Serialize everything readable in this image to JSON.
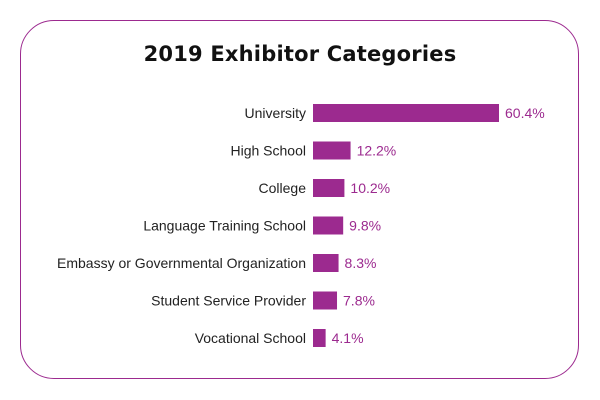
{
  "chart_data": {
    "type": "bar",
    "orientation": "horizontal",
    "title": "2019 Exhibitor Categories",
    "categories": [
      "University",
      "High School",
      "College",
      "Language Training School",
      "Embassy or Governmental Organization",
      "Student Service Provider",
      "Vocational School"
    ],
    "values": [
      60.4,
      12.2,
      10.2,
      9.8,
      8.3,
      7.8,
      4.1
    ],
    "value_labels": [
      "60.4%",
      "12.2%",
      "10.2%",
      "9.8%",
      "8.3%",
      "7.8%",
      "4.1%"
    ],
    "value_unit": "%",
    "xlim": [
      0,
      60.4
    ],
    "grid": false,
    "legend": "none",
    "bar_color": "#9c2a8f",
    "border_color": "#9c2a8f",
    "label_color": "#9c2a8f"
  }
}
